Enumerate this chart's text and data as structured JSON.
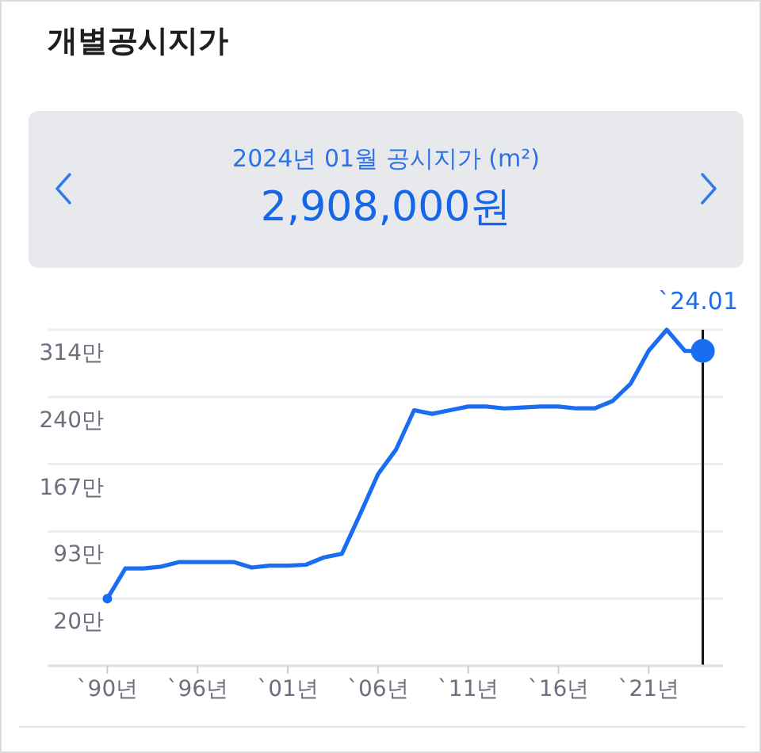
{
  "chart_data": {
    "type": "line",
    "title": "개별공시지가",
    "subtitle": "2024년 01월 공시지가 (m²)",
    "annotations": [
      "2,908,000원"
    ],
    "categories": [
      "`90년",
      null,
      null,
      null,
      null,
      "`96년",
      null,
      null,
      null,
      null,
      "`01년",
      null,
      null,
      null,
      null,
      "`06년",
      null,
      null,
      null,
      null,
      "`11년",
      null,
      null,
      null,
      null,
      "`16년",
      null,
      null,
      null,
      null,
      "`21년",
      null,
      null,
      "`24.01"
    ],
    "series": [
      {
        "type": "line",
        "color": "#1a6cf0",
        "values": [
          20,
          53,
          53,
          55,
          60,
          60,
          60,
          60,
          54,
          56,
          56,
          57,
          65,
          69,
          112,
          156,
          183,
          226,
          222,
          226,
          230,
          230,
          228,
          229,
          230,
          230,
          228,
          228,
          236,
          255,
          291,
          314,
          291,
          290.8
        ]
      },
      {
        "type": "scatter",
        "color": "#1a6cf0",
        "values": [
          20,
          null,
          null,
          null,
          null,
          null,
          null,
          null,
          null,
          null,
          null,
          null,
          null,
          null,
          null,
          null,
          null,
          null,
          null,
          null,
          null,
          null,
          null,
          null,
          null,
          null,
          null,
          null,
          null,
          null,
          null,
          null,
          null,
          290.8
        ]
      }
    ],
    "ylim": [
      -53.5,
      314
    ],
    "yticks": [
      {
        "value": 20,
        "label": "20만"
      },
      {
        "value": 93.5,
        "label": "93만"
      },
      {
        "value": 167,
        "label": "167만"
      },
      {
        "value": 240.5,
        "label": "240만"
      },
      {
        "value": 314,
        "label": "314만"
      }
    ],
    "grid": "y",
    "ref_lines": [
      {
        "axis": "x",
        "value": "`24.01",
        "color": "#111111"
      }
    ]
  }
}
